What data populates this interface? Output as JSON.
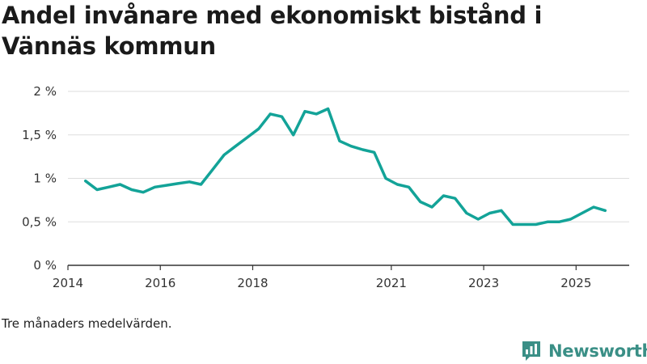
{
  "title": "Andel invånare med ekonomiskt bistånd i Vännäs kommun",
  "note": "Tre månaders medelvärden.",
  "brand": {
    "name": "Newsworthy",
    "icon": "newsworthy-logo-icon"
  },
  "colors": {
    "line": "#13a398",
    "grid": "#dddddd",
    "axis": "#333333",
    "brand": "#3a8f86"
  },
  "chart_data": {
    "type": "line",
    "title": "Andel invånare med ekonomiskt bistånd i Vännäs kommun",
    "xlabel": "",
    "ylabel": "",
    "xlim": [
      2014.0,
      2026.15
    ],
    "ylim": [
      0,
      2
    ],
    "y_ticks": [
      {
        "value": 0,
        "label": "0 %"
      },
      {
        "value": 0.5,
        "label": "0,5 %"
      },
      {
        "value": 1,
        "label": "1 %"
      },
      {
        "value": 1.5,
        "label": "1,5 %"
      },
      {
        "value": 2,
        "label": "2 %"
      }
    ],
    "x_ticks": [
      {
        "value": 2014,
        "label": "2014"
      },
      {
        "value": 2016,
        "label": "2016"
      },
      {
        "value": 2018,
        "label": "2018"
      },
      {
        "value": 2021,
        "label": "2021"
      },
      {
        "value": 2023,
        "label": "2023"
      },
      {
        "value": 2025,
        "label": "2025"
      }
    ],
    "grid": true,
    "series": [
      {
        "name": "Andel invånare med ekonomiskt bistånd",
        "unit": "%",
        "x": [
          2014.38,
          2014.63,
          2014.88,
          2015.13,
          2015.38,
          2015.63,
          2015.88,
          2016.13,
          2016.38,
          2016.63,
          2016.88,
          2017.13,
          2017.38,
          2017.63,
          2017.88,
          2018.13,
          2018.38,
          2018.63,
          2018.88,
          2019.13,
          2019.38,
          2019.63,
          2019.88,
          2020.13,
          2020.38,
          2020.63,
          2020.88,
          2021.13,
          2021.38,
          2021.63,
          2021.88,
          2022.13,
          2022.38,
          2022.63,
          2022.88,
          2023.13,
          2023.38,
          2023.63,
          2023.88,
          2024.13,
          2024.38,
          2024.63,
          2024.88,
          2025.13,
          2025.38,
          2025.63
        ],
        "values": [
          0.97,
          0.87,
          0.9,
          0.93,
          0.87,
          0.84,
          0.9,
          0.92,
          0.94,
          0.96,
          0.93,
          1.1,
          1.27,
          1.37,
          1.47,
          1.57,
          1.74,
          1.71,
          1.5,
          1.77,
          1.74,
          1.8,
          1.43,
          1.37,
          1.33,
          1.3,
          1.0,
          0.93,
          0.9,
          0.73,
          0.67,
          0.8,
          0.77,
          0.6,
          0.53,
          0.6,
          0.63,
          0.47,
          0.47,
          0.47,
          0.5,
          0.5,
          0.53,
          0.6,
          0.67,
          0.63
        ]
      }
    ]
  }
}
